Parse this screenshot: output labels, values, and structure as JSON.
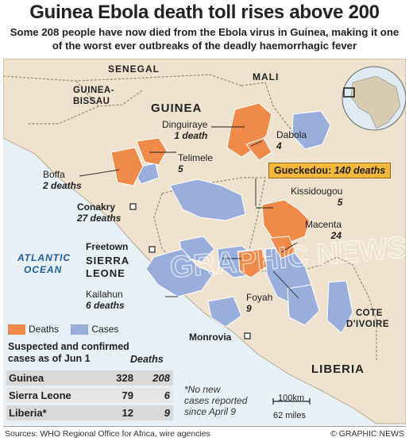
{
  "title": "Guinea Ebola death toll rises above 200",
  "subtitle": "Some 208 people have now died from the Ebola virus in Guinea, making it one of the worst ever outbreaks of the deadly haemorrhagic fever",
  "colors": {
    "deaths": "#f08a4b",
    "cases": "#9aaedc",
    "land": "#efe3cf",
    "sea": "#e7f0f7",
    "callout": "#f6b83a"
  },
  "countries": {
    "senegal": "SENEGAL",
    "mali": "MALI",
    "guinea_bissau_1": "GUINEA-",
    "guinea_bissau_2": "BISSAU",
    "guinea": "GUINEA",
    "sierra_leone_1": "SIERRA",
    "sierra_leone_2": "LEONE",
    "liberia": "LIBERIA",
    "cote_divoire_1": "COTE",
    "cote_divoire_2": "D'IVOIRE",
    "atlantic_1": "ATLANTIC",
    "atlantic_2": "OCEAN"
  },
  "places": [
    {
      "name": "Dinguiraye",
      "deaths": "1 death"
    },
    {
      "name": "Dabola",
      "deaths": "4"
    },
    {
      "name": "Telimele",
      "deaths": "5"
    },
    {
      "name": "Boffa",
      "deaths": "2 deaths"
    },
    {
      "name": "Conakry",
      "deaths": "27 deaths"
    },
    {
      "name": "Kissidougou",
      "deaths": "5"
    },
    {
      "name": "Macenta",
      "deaths": "24"
    },
    {
      "name": "Freetown",
      "deaths": ""
    },
    {
      "name": "Kailahun",
      "deaths": "6 deaths"
    },
    {
      "name": "Foyah",
      "deaths": "9"
    },
    {
      "name": "Monrovia",
      "deaths": ""
    }
  ],
  "callout": {
    "name": "Gueckedou:",
    "deaths": "140 deaths"
  },
  "legend": {
    "deaths": "Deaths",
    "cases": "Cases"
  },
  "table": {
    "heading_1": "Suspected and confirmed",
    "heading_2": "cases as of Jun 1",
    "deaths_header": "Deaths",
    "rows": [
      {
        "country": "Guinea",
        "cases": "328",
        "deaths": "208"
      },
      {
        "country": "Sierra Leone",
        "cases": "79",
        "deaths": "6"
      },
      {
        "country": "Liberia*",
        "cases": "12",
        "deaths": "9"
      }
    ]
  },
  "note": [
    "*No new",
    "cases reported",
    "since April 9"
  ],
  "scale": {
    "km": "100km",
    "miles": "62 miles"
  },
  "footer": {
    "source": "Sources: WHO Regional Office for Africa, wire agencies",
    "credit": "© GRAPHIC NEWS"
  },
  "watermark": "GRAPHIC NEWS"
}
